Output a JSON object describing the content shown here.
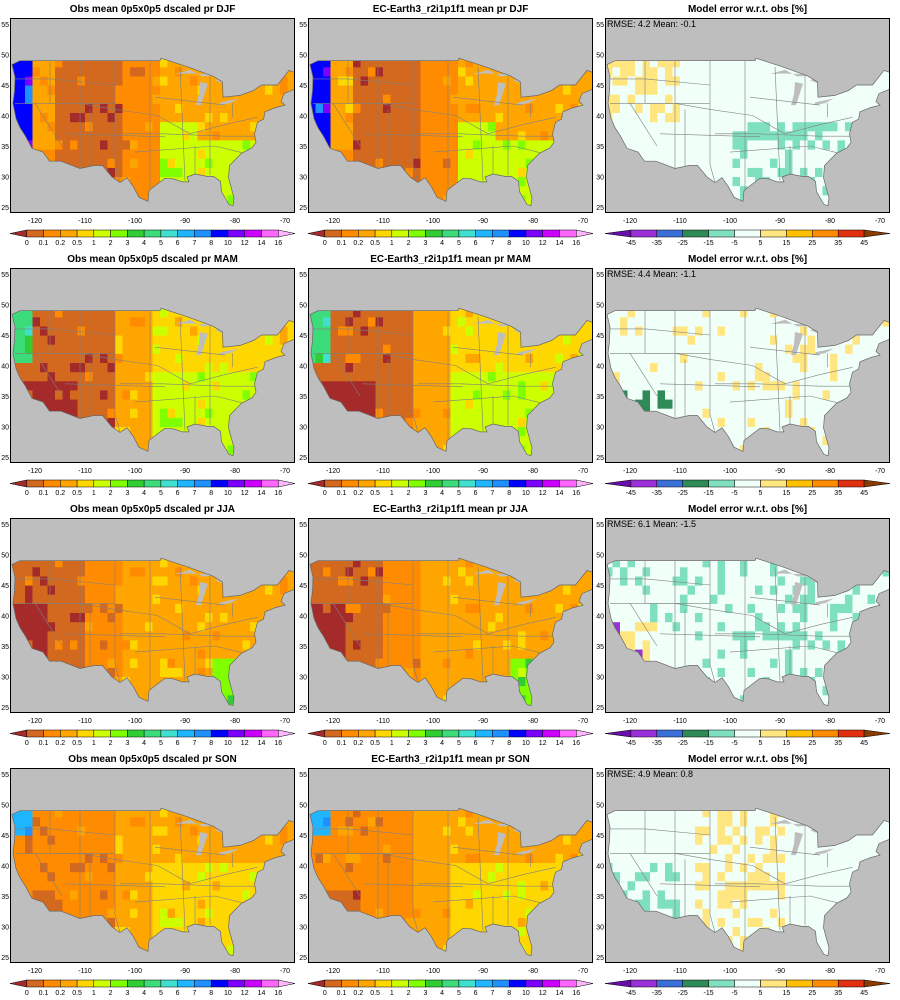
{
  "rows": [
    {
      "season": "DJF",
      "titles": [
        "Obs mean 0p5x0p5 dscaled pr DJF",
        "EC-Earth3_r2i1p1f1 mean pr DJF",
        "Model error w.r.t. obs [%]"
      ],
      "stats": "RMSE: 4.2  Mean: -0.1"
    },
    {
      "season": "MAM",
      "titles": [
        "Obs mean 0p5x0p5 dscaled pr MAM",
        "EC-Earth3_r2i1p1f1 mean pr MAM",
        "Model error w.r.t. obs [%]"
      ],
      "stats": "RMSE: 4.4  Mean: -1.1"
    },
    {
      "season": "JJA",
      "titles": [
        "Obs mean 0p5x0p5 dscaled pr JJA",
        "EC-Earth3_r2i1p1f1 mean pr JJA",
        "Model error w.r.t. obs [%]"
      ],
      "stats": "RMSE: 6.1  Mean: -1.5"
    },
    {
      "season": "SON",
      "titles": [
        "Obs mean 0p5x0p5 dscaled pr SON",
        "EC-Earth3_r2i1p1f1 mean pr SON",
        "Model error w.r.t. obs [%]"
      ],
      "stats": "RMSE: 4.9  Mean: 0.8"
    }
  ],
  "axes": {
    "lon_ticks": [
      "-120",
      "-110",
      "-100",
      "-90",
      "-80",
      "-70"
    ],
    "lat_ticks": [
      "25",
      "30",
      "35",
      "40",
      "45",
      "50",
      "55"
    ]
  },
  "colorbars": {
    "precip": {
      "labels": [
        "0",
        "0.1",
        "0.2",
        "0.5",
        "1",
        "2",
        "3",
        "4",
        "5",
        "6",
        "7",
        "8",
        "10",
        "12",
        "14",
        "16"
      ],
      "colors": [
        "#a52a2a",
        "#d2691e",
        "#ff8c00",
        "#ffa500",
        "#ffd700",
        "#ccff00",
        "#7fff00",
        "#32cd32",
        "#3cdc7a",
        "#40e0d0",
        "#1fb6ff",
        "#1e90ff",
        "#0000ff",
        "#7b00ff",
        "#cc00ff",
        "#ff66ff",
        "#ffb6ff"
      ]
    },
    "error": {
      "labels": [
        "-45",
        "-35",
        "-25",
        "-15",
        "-5",
        "5",
        "15",
        "25",
        "35",
        "45"
      ],
      "colors": [
        "#6a0dad",
        "#9b30d9",
        "#3a6fd8",
        "#2e8b57",
        "#7fe0c0",
        "#f0fff8",
        "#ffe680",
        "#ffc000",
        "#ff8c00",
        "#e03010",
        "#8b3a00"
      ]
    }
  },
  "palette": {
    "land_grey": "#bebebe",
    "border_grey": "#808080"
  }
}
